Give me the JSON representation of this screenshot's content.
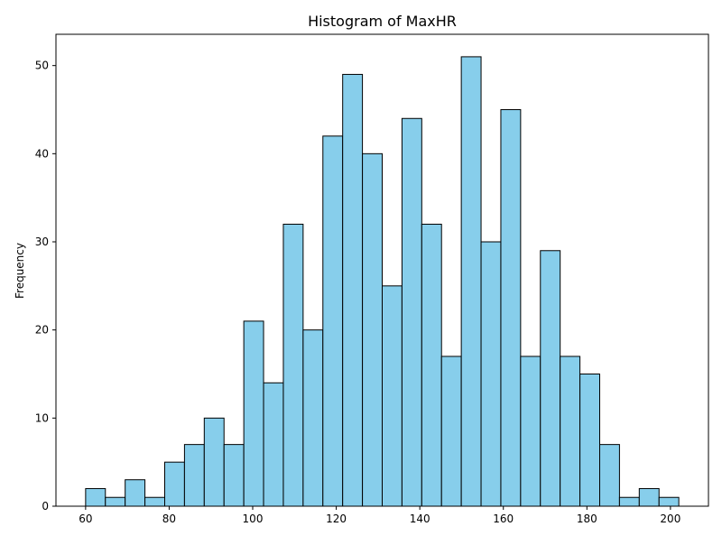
{
  "chart_data": {
    "type": "bar",
    "title": "Histogram of MaxHR",
    "xlabel": "",
    "ylabel": "Frequency",
    "bin_edges": [
      60,
      64.7333,
      69.4667,
      74.2,
      78.9333,
      83.6667,
      88.4,
      93.1333,
      97.8667,
      102.6,
      107.3333,
      112.0667,
      116.8,
      121.5333,
      126.2667,
      131,
      135.7333,
      140.4667,
      145.2,
      149.9333,
      154.6667,
      159.4,
      164.1333,
      168.8667,
      173.6,
      178.3333,
      183.0667,
      187.8,
      192.5333,
      197.2667,
      202
    ],
    "values": [
      2,
      1,
      3,
      1,
      5,
      7,
      10,
      7,
      21,
      14,
      32,
      20,
      42,
      49,
      40,
      25,
      44,
      32,
      17,
      51,
      30,
      45,
      17,
      29,
      17,
      15,
      7,
      1,
      2,
      1
    ],
    "xlim": [
      52.9,
      209.1
    ],
    "ylim": [
      0,
      53.55
    ],
    "xticks": [
      60,
      80,
      100,
      120,
      140,
      160,
      180,
      200
    ],
    "yticks": [
      0,
      10,
      20,
      30,
      40,
      50
    ],
    "bar_color": "#87ceeb",
    "edge_color": "#000000",
    "grid": false,
    "legend": "none"
  }
}
